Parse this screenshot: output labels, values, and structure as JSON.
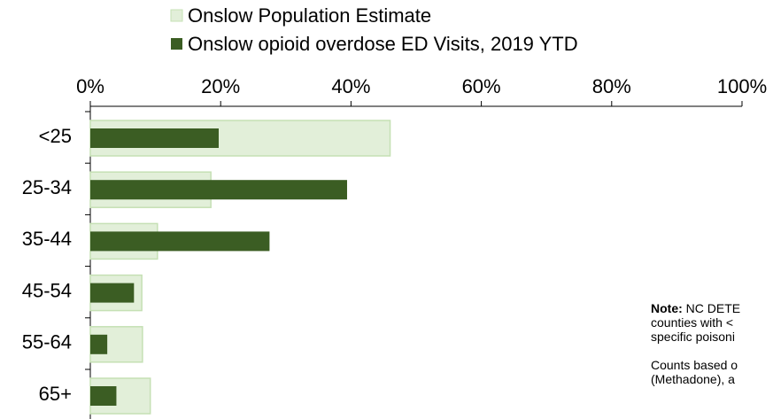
{
  "chart_data": {
    "type": "bar",
    "orientation": "horizontal",
    "categories": [
      "<25",
      "25-34",
      "35-44",
      "45-54",
      "55-64",
      "65+"
    ],
    "series": [
      {
        "name": "Onslow Population Estimate",
        "values": [
          46,
          18.5,
          10.3,
          7.9,
          8.0,
          9.2
        ],
        "color": "#e2efd9",
        "border": "#c5e0b4"
      },
      {
        "name": "Onslow opioid overdose ED Visits, 2019 YTD",
        "values": [
          19.7,
          39.4,
          27.5,
          6.7,
          2.6,
          4.0
        ],
        "color": "#3b5d23"
      }
    ],
    "xlim": [
      0,
      100
    ],
    "x_tick_labels": [
      "0%",
      "20%",
      "40%",
      "60%",
      "80%",
      "100%"
    ],
    "x_axis_position": "top",
    "legend_position": "top",
    "grid": false
  },
  "note": {
    "line1_bold": "Note:",
    "line1_rest": " NC DETE",
    "line2": "counties with <",
    "line3": "specific poisoni",
    "line4": "Counts based o",
    "line5": "(Methadone), a"
  }
}
